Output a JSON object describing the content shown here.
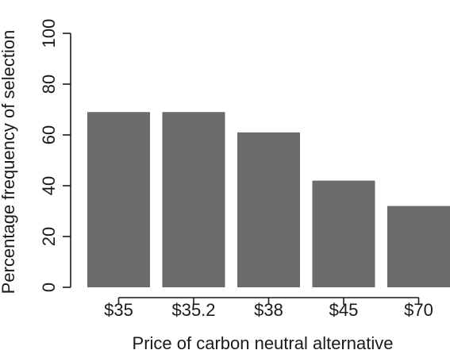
{
  "chart_data": {
    "type": "bar",
    "title": "",
    "xlabel": "Price of carbon neutral alternative",
    "ylabel": "Percentage frequency of selection",
    "categories": [
      "$35",
      "$35.2",
      "$38",
      "$45",
      "$70"
    ],
    "values": [
      69,
      69,
      61,
      42,
      32
    ],
    "ylim": [
      0,
      100
    ],
    "yticks": [
      0,
      20,
      40,
      60,
      80,
      100
    ],
    "grid": false,
    "legend": "none",
    "bar_color": "#6b6b6b"
  }
}
